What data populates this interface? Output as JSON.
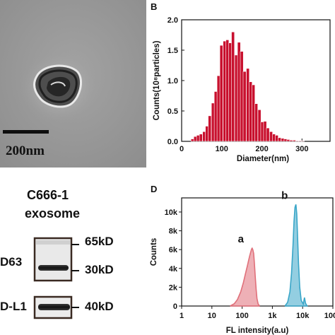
{
  "panel_a": {
    "scale_label": "200nm"
  },
  "panel_b": {
    "letter": "B"
  },
  "panel_c": {
    "cell_line": "C666-1",
    "sample": "exosome",
    "band1_label": "D63",
    "band2_label": "D-L1",
    "marker_65": "65kD",
    "marker_30": "30kD",
    "marker_40": "40kD"
  },
  "panel_d": {
    "letter": "D"
  },
  "chart_data": [
    {
      "panel": "B",
      "type": "bar",
      "xlabel": "Diameter(nm)",
      "ylabel": "Counts(10⁸particles)",
      "xlim": [
        0,
        370
      ],
      "ylim": [
        0,
        2.0
      ],
      "xticks": [
        0,
        100,
        200,
        300
      ],
      "yticks": [
        0.0,
        0.5,
        1.0,
        1.5,
        2.0
      ],
      "ytick_labels": [
        "0.0",
        "0.5",
        "1.0",
        "1.5",
        "2.0"
      ],
      "bin_width": 7.5,
      "x": [
        27,
        34,
        41,
        48,
        56,
        63,
        70,
        78,
        85,
        92,
        99,
        107,
        114,
        121,
        128,
        136,
        143,
        150,
        157,
        165,
        172,
        179,
        186,
        194,
        201,
        208,
        215,
        223,
        230,
        237,
        244,
        252,
        259,
        266,
        273,
        281,
        288,
        295,
        302
      ],
      "values": [
        0.04,
        0.08,
        0.1,
        0.12,
        0.16,
        0.25,
        0.42,
        0.63,
        0.82,
        1.08,
        1.58,
        1.65,
        1.67,
        1.62,
        1.8,
        1.42,
        1.63,
        1.48,
        1.15,
        1.2,
        0.98,
        0.93,
        0.62,
        0.52,
        0.32,
        0.33,
        0.22,
        0.16,
        0.12,
        0.1,
        0.06,
        0.05,
        0.04,
        0.03,
        0.02,
        0.02,
        0.01,
        0.01,
        0.01
      ],
      "bar_color": "#c8102e"
    },
    {
      "panel": "D",
      "type": "area",
      "xlabel": "FL intensity(a.u)",
      "ylabel": "Counts",
      "xscale": "log",
      "xlim": [
        1,
        100000
      ],
      "ylim": [
        0,
        11500
      ],
      "xticks": [
        1,
        10,
        100,
        1000,
        10000,
        100000
      ],
      "xtick_labels": [
        "1",
        "10",
        "100",
        "1k",
        "10k",
        "100k"
      ],
      "yticks": [
        0,
        2000,
        4000,
        6000,
        8000,
        10000
      ],
      "ytick_labels": [
        "0",
        "2k",
        "4k",
        "6k",
        "8k",
        "10k"
      ],
      "series": [
        {
          "name": "a",
          "color": "#e0707a",
          "x": [
            40,
            55,
            70,
            90,
            110,
            130,
            150,
            165,
            180,
            195,
            205,
            215,
            225,
            240,
            255,
            270,
            290,
            310,
            340,
            380
          ],
          "values": [
            0,
            250,
            700,
            1500,
            2500,
            3500,
            4300,
            4900,
            5400,
            5800,
            6050,
            6150,
            6000,
            5600,
            4500,
            3200,
            1800,
            800,
            200,
            0
          ]
        },
        {
          "name": "b",
          "color": "#3aa6c8",
          "x": [
            2600,
            3200,
            3800,
            4300,
            4800,
            5200,
            5600,
            6000,
            6400,
            6800,
            7300,
            8000,
            9000,
            10500,
            11500,
            12500,
            14000
          ],
          "values": [
            0,
            400,
            1500,
            3500,
            6500,
            9000,
            10500,
            10800,
            9800,
            7500,
            4500,
            2000,
            600,
            200,
            900,
            300,
            0
          ]
        }
      ]
    }
  ]
}
